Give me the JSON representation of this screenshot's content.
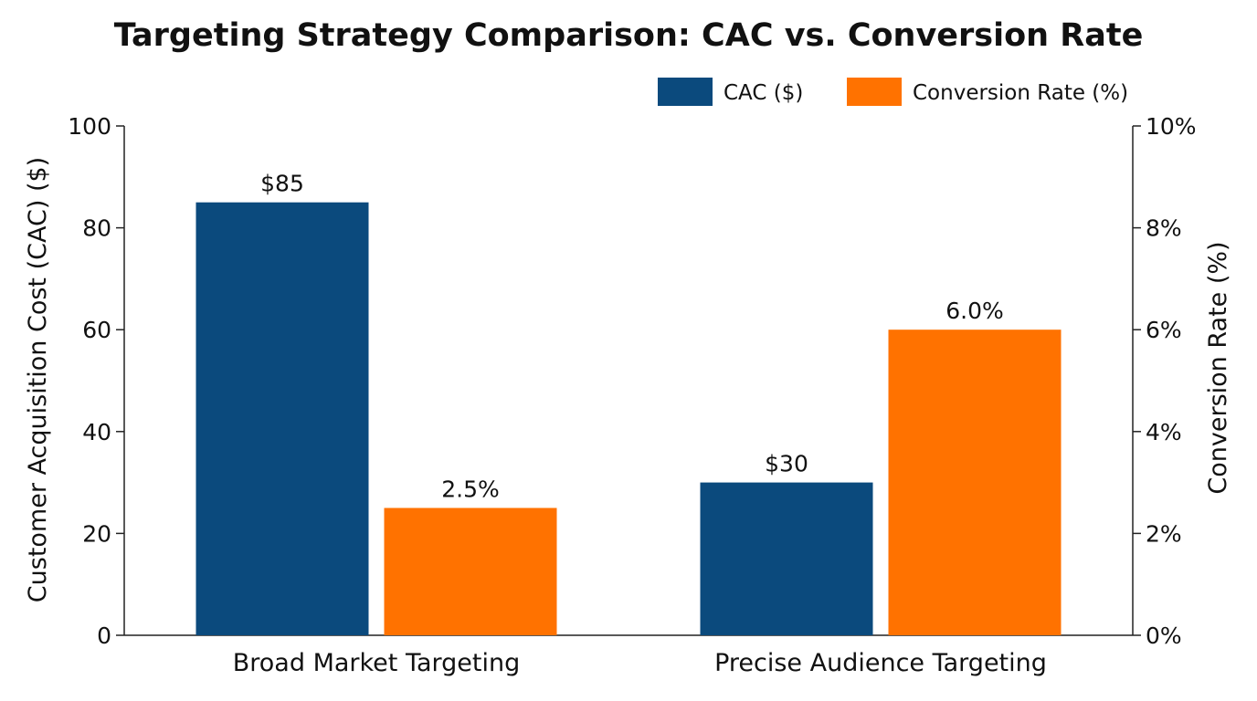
{
  "chart_data": {
    "type": "bar",
    "title": "Targeting Strategy Comparison: CAC vs. Conversion Rate",
    "categories": [
      "Broad Market Targeting",
      "Precise Audience Targeting"
    ],
    "series": [
      {
        "name": "CAC ($)",
        "axis": "left",
        "values": [
          85,
          30
        ],
        "labels": [
          "$85",
          "$30"
        ],
        "color": "#0b4a7d"
      },
      {
        "name": "Conversion Rate (%)",
        "axis": "right",
        "values": [
          2.5,
          6.0
        ],
        "labels": [
          "2.5%",
          "6.0%"
        ],
        "color": "#ff7200"
      }
    ],
    "y_left": {
      "label": "Customer Acquisition Cost (CAC) ($)",
      "range": [
        0,
        100
      ],
      "ticks": [
        "0",
        "20",
        "40",
        "60",
        "80",
        "100"
      ]
    },
    "y_right": {
      "label": "Conversion Rate (%)",
      "range": [
        0,
        10
      ],
      "ticks": [
        "0%",
        "2%",
        "4%",
        "6%",
        "8%",
        "10%"
      ]
    },
    "grid": false,
    "legend_position": "top-right"
  }
}
